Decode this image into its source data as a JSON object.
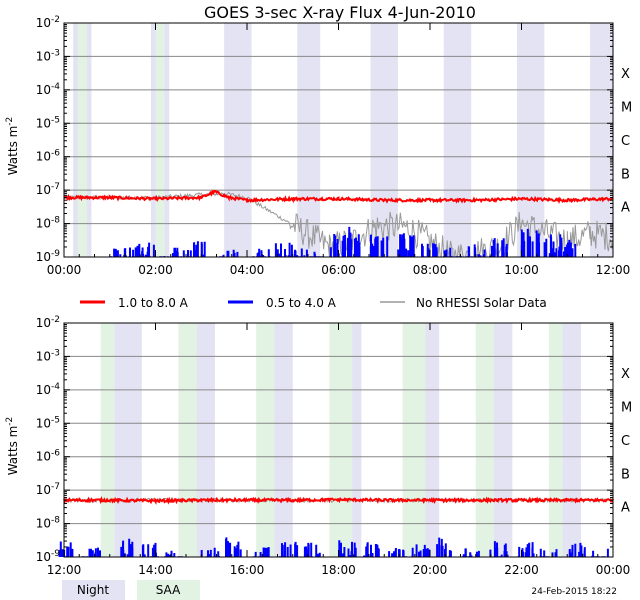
{
  "title": "GOES 3-sec X-ray Flux     4-Jun-2010",
  "ylabel": "Watts m",
  "ylabel_sup": "-2",
  "ytick_base": "10",
  "ytick_exps": [
    "-9",
    "-8",
    "-7",
    "-6",
    "-5",
    "-4",
    "-3",
    "-2"
  ],
  "class_labels": [
    "A",
    "B",
    "C",
    "M",
    "X"
  ],
  "legend": [
    {
      "label": "1.0 to 8.0 A",
      "color": "#ff0000"
    },
    {
      "label": "0.5 to 4.0 A",
      "color": "#0000ff"
    },
    {
      "label": "No RHESSI Solar Data",
      "color": "#999999"
    }
  ],
  "bottom_legend": [
    {
      "label": "Night",
      "color": "#e3e3f3"
    },
    {
      "label": "SAA",
      "color": "#e3f3e3"
    }
  ],
  "timestamp": "24-Feb-2015 18:22",
  "colors": {
    "night": "#e3e3f3",
    "saa": "#e3f3e3",
    "long": "#ff0000",
    "short": "#0000ff",
    "norhessi": "#999999",
    "grid": "#888888"
  },
  "chart_data": [
    {
      "type": "line",
      "title": "GOES 3-sec X-ray Flux     4-Jun-2010",
      "ylabel": "Watts m^-2",
      "yscale": "log",
      "ylim": [
        1e-09,
        0.01
      ],
      "x_unit": "hours UT",
      "xlim": [
        0,
        12
      ],
      "xtick_labels": [
        "00:00",
        "02:00",
        "04:00",
        "06:00",
        "08:00",
        "10:00",
        "12:00"
      ],
      "night_intervals": [
        [
          0.2,
          0.6
        ],
        [
          1.9,
          2.3
        ],
        [
          3.5,
          4.1
        ],
        [
          5.1,
          5.6
        ],
        [
          6.7,
          7.3
        ],
        [
          8.3,
          8.9
        ],
        [
          9.9,
          10.5
        ],
        [
          11.5,
          12.0
        ]
      ],
      "saa_intervals": [
        [
          0.3,
          0.5
        ],
        [
          2.0,
          2.2
        ]
      ],
      "series": [
        {
          "name": "1.0 to 8.0 A",
          "x": [
            0,
            1,
            2,
            3,
            3.3,
            3.6,
            4,
            5,
            6,
            7,
            8,
            9,
            10,
            11,
            12
          ],
          "y": [
            6e-08,
            6e-08,
            5.5e-08,
            6e-08,
            9e-08,
            6e-08,
            5e-08,
            5.5e-08,
            5.5e-08,
            5e-08,
            5e-08,
            5e-08,
            5.5e-08,
            5e-08,
            5.5e-08
          ]
        },
        {
          "name": "0.5 to 4.0 A",
          "x": [
            1.2,
            1.5,
            1.8,
            2.3,
            2.6,
            2.9,
            3.6,
            4.3,
            4.8,
            5.1,
            5.5,
            6.0,
            6.3,
            6.9,
            7.5,
            8.0,
            8.5,
            9.0,
            9.5,
            10.2,
            10.7,
            11.0
          ],
          "y": [
            2e-09,
            2e-09,
            3e-09,
            2e-09,
            2e-09,
            3e-09,
            2e-09,
            2e-09,
            3e-09,
            3e-09,
            2e-09,
            5e-09,
            8e-09,
            6e-09,
            6e-09,
            3e-09,
            2e-09,
            3e-09,
            4e-09,
            8e-09,
            5e-09,
            4e-09
          ]
        },
        {
          "name": "No RHESSI Solar Data",
          "x": [
            0,
            2,
            3.5,
            4.0,
            5.8,
            6.3,
            6.8,
            7.5,
            8.5,
            9.5,
            10.0,
            11.0,
            11.5,
            12
          ],
          "y": [
            6e-08,
            6e-08,
            8e-08,
            6e-08,
            2e-09,
            3e-09,
            8e-09,
            8e-09,
            1e-09,
            2e-09,
            1e-08,
            3e-09,
            5e-09,
            4e-09
          ]
        }
      ]
    },
    {
      "type": "line",
      "ylabel": "Watts m^-2",
      "yscale": "log",
      "ylim": [
        1e-09,
        0.01
      ],
      "x_unit": "hours UT",
      "xlim": [
        12,
        24
      ],
      "xtick_labels": [
        "12:00",
        "14:00",
        "16:00",
        "18:00",
        "20:00",
        "22:00",
        "00:00"
      ],
      "night_intervals": [
        [
          13.1,
          13.7
        ],
        [
          14.7,
          15.3
        ],
        [
          16.4,
          17.0
        ],
        [
          18.0,
          18.5
        ],
        [
          19.6,
          20.2
        ],
        [
          21.2,
          21.8
        ],
        [
          22.8,
          23.3
        ]
      ],
      "saa_intervals": [
        [
          12.8,
          13.1
        ],
        [
          14.5,
          14.9
        ],
        [
          16.2,
          16.6
        ],
        [
          17.8,
          18.3
        ],
        [
          19.4,
          19.9
        ],
        [
          21.0,
          21.4
        ],
        [
          22.6,
          22.9
        ]
      ],
      "series": [
        {
          "name": "1.0 to 8.0 A",
          "x": [
            12,
            13,
            14,
            15,
            16,
            17,
            18,
            19,
            20,
            21,
            22,
            23,
            24
          ],
          "y": [
            5e-08,
            5e-08,
            4.8e-08,
            5e-08,
            5e-08,
            5e-08,
            5.2e-08,
            5e-08,
            5e-08,
            5e-08,
            5e-08,
            5e-08,
            5e-08
          ]
        },
        {
          "name": "0.5 to 4.0 A",
          "x": [
            12.1,
            12.6,
            13.3,
            13.9,
            14.4,
            15.2,
            15.7,
            16.3,
            16.9,
            17.4,
            18.2,
            18.7,
            19.3,
            19.8,
            20.3,
            20.9,
            21.5,
            22.1,
            22.6,
            23.2,
            23.7
          ],
          "y": [
            3e-09,
            2e-09,
            4e-09,
            3e-09,
            2e-09,
            3e-09,
            4e-09,
            2e-09,
            3e-09,
            3e-09,
            4e-09,
            3e-09,
            2e-09,
            3e-09,
            4e-09,
            2e-09,
            3e-09,
            3e-09,
            2e-09,
            3e-09,
            2e-09
          ]
        },
        {
          "name": "No RHESSI Solar Data",
          "x": [
            12,
            13,
            14,
            15,
            16,
            17,
            18,
            19,
            20,
            21,
            22,
            23,
            24
          ],
          "y": [
            5e-08,
            5e-08,
            5e-08,
            5e-08,
            5e-08,
            5e-08,
            5e-08,
            5e-08,
            5e-08,
            5e-08,
            5e-08,
            5e-08,
            5e-08
          ]
        }
      ]
    }
  ]
}
